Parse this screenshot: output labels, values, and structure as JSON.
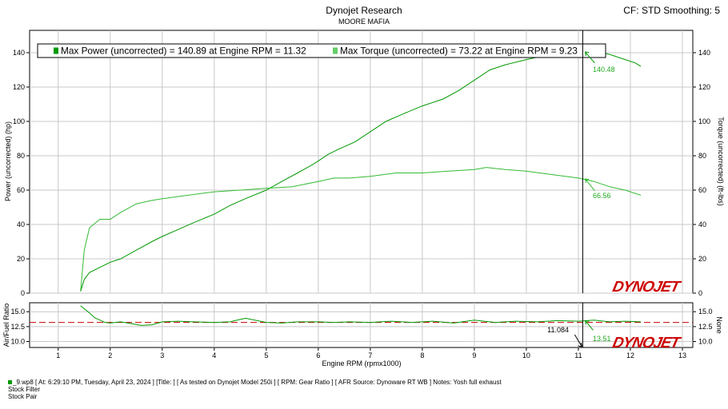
{
  "header": {
    "title": "Dynojet Research",
    "subtitle": "MOORE MAFIA",
    "corner": "CF: STD Smoothing: 5"
  },
  "legend": {
    "power_text": "Max Power (uncorrected) = 140.89 at Engine RPM = 11.32",
    "torque_text": "Max Torque (uncorrected) = 73.22 at Engine RPM = 9.23"
  },
  "brand": "DYNOJET",
  "colors": {
    "power": "#009900",
    "torque": "#33bb33",
    "afr_target": "#cc0000",
    "cursor": "#000000",
    "readout": "#22aa22"
  },
  "cursor_readout": {
    "rpm": "11.084",
    "power": "140.48",
    "torque": "66.56",
    "afr": "13.51"
  },
  "footer": {
    "line1": "_9.wp8 [ At: 6:29:10 PM, Tuesday, April 23, 2024 ] [Title: ]  [ As tested on Dynojet Model 250i ] [ RPM: Gear Ratio ] [ AFR Source: Dynoware RT WB ] Notes: Yosh full exhaust",
    "line2": "Stock Filter",
    "line3": "Stock Pair"
  },
  "chart_data": [
    {
      "type": "line",
      "xlabel": "Engine RPM (rpmx1000)",
      "ylabel": "Power (uncorrected) (hp)",
      "y2label": "Torque (uncorrected) (ft-lbs)",
      "xlim": [
        0.45,
        13.2
      ],
      "ylim": [
        0,
        153
      ],
      "xticks": [
        1,
        2,
        3,
        4,
        5,
        6,
        7,
        8,
        9,
        10,
        11,
        12,
        13
      ],
      "yticks": [
        0,
        20,
        40,
        60,
        80,
        100,
        120,
        140
      ],
      "y2ticks": [
        0,
        20,
        40,
        60,
        80,
        100,
        120,
        140
      ],
      "grid": true,
      "legend_position": "top",
      "series": [
        {
          "name": "Max Power (uncorrected)",
          "axis": "left",
          "x": [
            1.43,
            1.5,
            1.6,
            1.8,
            2.0,
            2.2,
            2.5,
            2.8,
            3.0,
            3.3,
            3.6,
            4.0,
            4.3,
            4.6,
            5.0,
            5.3,
            5.6,
            5.9,
            6.0,
            6.2,
            6.4,
            6.7,
            7.0,
            7.3,
            7.6,
            8.0,
            8.4,
            8.7,
            9.0,
            9.3,
            9.6,
            10.0,
            10.3,
            10.7,
            11.0,
            11.32,
            11.6,
            11.9,
            12.1,
            12.2
          ],
          "y": [
            1,
            8,
            12,
            15,
            18,
            20,
            25,
            30,
            33,
            37,
            41,
            46,
            51,
            55,
            60,
            65,
            70,
            75,
            77,
            81,
            84,
            88,
            94,
            100,
            104,
            109,
            113,
            118,
            124,
            130,
            133,
            136,
            138,
            140,
            140.5,
            140.89,
            139,
            136,
            134,
            132
          ]
        },
        {
          "name": "Max Torque (uncorrected)",
          "axis": "right",
          "x": [
            1.43,
            1.5,
            1.6,
            1.8,
            2.0,
            2.2,
            2.5,
            2.8,
            3.0,
            3.5,
            4.0,
            4.5,
            5.0,
            5.5,
            6.0,
            6.3,
            6.6,
            7.0,
            7.5,
            8.0,
            8.5,
            9.0,
            9.23,
            9.6,
            10.0,
            10.5,
            11.0,
            11.3,
            11.6,
            11.9,
            12.2
          ],
          "y": [
            1,
            25,
            38,
            43,
            43,
            47,
            52,
            54,
            55,
            57,
            59,
            60,
            61,
            62,
            65,
            67,
            67,
            68,
            70,
            70,
            71,
            72,
            73.22,
            72,
            71,
            69,
            67,
            65,
            62,
            60,
            57
          ]
        }
      ]
    },
    {
      "type": "line",
      "ylabel": "Air/Fuel Ratio",
      "y2label": "None",
      "xlim": [
        0.45,
        13.2
      ],
      "ylim": [
        9,
        16.5
      ],
      "xticks": [
        1,
        2,
        3,
        4,
        5,
        6,
        7,
        8,
        9,
        10,
        11,
        12,
        13
      ],
      "yticks": [
        10.0,
        12.5,
        15.0
      ],
      "y2ticks": [
        10.0,
        12.5,
        15.0
      ],
      "reference_line": 13.2,
      "series": [
        {
          "name": "Air/Fuel Ratio",
          "x": [
            1.43,
            1.5,
            1.6,
            1.7,
            1.8,
            1.9,
            2.0,
            2.2,
            2.4,
            2.6,
            2.8,
            3.0,
            3.3,
            3.6,
            4.0,
            4.3,
            4.6,
            5.0,
            5.3,
            5.6,
            6.0,
            6.3,
            6.6,
            7.0,
            7.4,
            7.8,
            8.2,
            8.6,
            9.0,
            9.4,
            9.8,
            10.2,
            10.6,
            11.0,
            11.3,
            11.6,
            11.9,
            12.2
          ],
          "y": [
            16.0,
            15.5,
            14.8,
            14.0,
            13.6,
            13.2,
            13.1,
            13.3,
            13.0,
            12.7,
            12.8,
            13.3,
            13.4,
            13.3,
            13.2,
            13.3,
            13.9,
            13.2,
            13.1,
            13.3,
            13.3,
            13.2,
            13.3,
            13.2,
            13.4,
            13.2,
            13.4,
            13.1,
            13.6,
            13.2,
            13.4,
            13.3,
            13.5,
            13.4,
            13.6,
            13.3,
            13.4,
            13.3
          ]
        }
      ]
    }
  ]
}
